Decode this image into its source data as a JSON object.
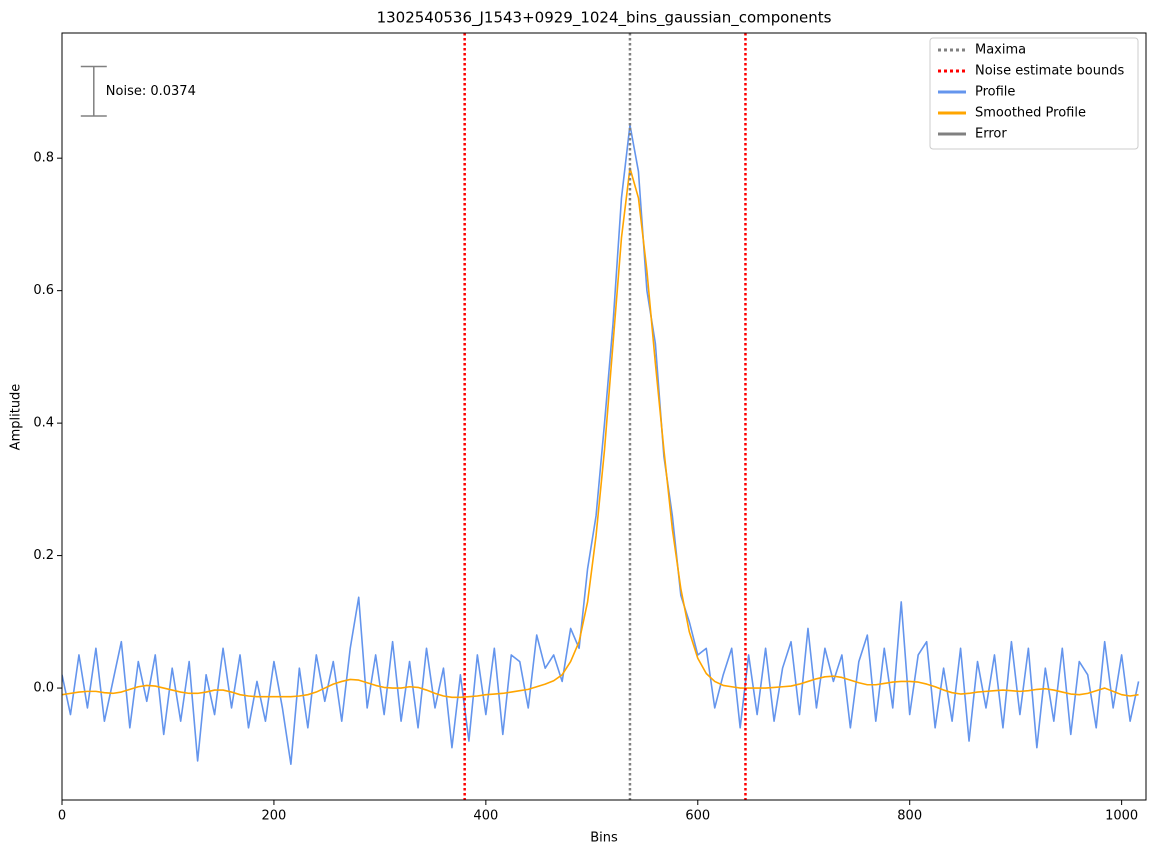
{
  "chart_data": {
    "type": "line",
    "title": "1302540536_J1543+0929_1024_bins_gaussian_components",
    "x_label": "Bins",
    "y_label": "Amplitude",
    "xlim": [
      0,
      1023
    ],
    "ylim": [
      -0.169,
      0.989
    ],
    "xticks": [
      0,
      200,
      400,
      600,
      800,
      1000
    ],
    "yticks": [
      {
        "value": 0,
        "label": "0.0"
      },
      0.2,
      0.4,
      0.6,
      0.8
    ],
    "legend": "upper right",
    "x": [
      0,
      8,
      16,
      24,
      32,
      40,
      48,
      56,
      64,
      72,
      80,
      88,
      96,
      104,
      112,
      120,
      128,
      136,
      144,
      152,
      160,
      168,
      176,
      184,
      192,
      200,
      208,
      216,
      224,
      232,
      240,
      248,
      256,
      264,
      272,
      280,
      288,
      296,
      304,
      312,
      320,
      328,
      336,
      344,
      352,
      360,
      368,
      376,
      384,
      392,
      400,
      408,
      416,
      424,
      432,
      440,
      448,
      456,
      464,
      472,
      480,
      488,
      496,
      504,
      512,
      520,
      528,
      536,
      544,
      552,
      560,
      568,
      576,
      584,
      592,
      600,
      608,
      616,
      624,
      632,
      640,
      648,
      656,
      664,
      672,
      680,
      688,
      696,
      704,
      712,
      720,
      728,
      736,
      744,
      752,
      760,
      768,
      776,
      784,
      792,
      800,
      808,
      816,
      824,
      832,
      840,
      848,
      856,
      864,
      872,
      880,
      888,
      896,
      904,
      912,
      920,
      928,
      936,
      944,
      952,
      960,
      968,
      976,
      984,
      992,
      1000,
      1008,
      1016
    ],
    "series": [
      {
        "name": "Profile",
        "color": "#6495ed",
        "width": 2,
        "values": [
          0.02,
          -0.04,
          0.05,
          -0.03,
          0.06,
          -0.05,
          0.01,
          0.07,
          -0.06,
          0.04,
          -0.02,
          0.05,
          -0.07,
          0.03,
          -0.05,
          0.04,
          -0.11,
          0.02,
          -0.04,
          0.06,
          -0.03,
          0.05,
          -0.06,
          0.01,
          -0.05,
          0.04,
          -0.03,
          -0.115,
          0.03,
          -0.06,
          0.05,
          -0.02,
          0.04,
          -0.05,
          0.06,
          0.137,
          -0.03,
          0.05,
          -0.04,
          0.07,
          -0.05,
          0.04,
          -0.06,
          0.06,
          -0.03,
          0.03,
          -0.09,
          0.02,
          -0.08,
          0.05,
          -0.04,
          0.06,
          -0.07,
          0.05,
          0.04,
          -0.03,
          0.08,
          0.03,
          0.05,
          0.01,
          0.09,
          0.06,
          0.18,
          0.26,
          0.4,
          0.55,
          0.74,
          0.85,
          0.78,
          0.6,
          0.52,
          0.35,
          0.26,
          0.14,
          0.1,
          0.05,
          0.06,
          -0.03,
          0.02,
          0.06,
          -0.06,
          0.05,
          -0.04,
          0.06,
          -0.05,
          0.03,
          0.07,
          -0.04,
          0.09,
          -0.03,
          0.06,
          0.01,
          0.05,
          -0.06,
          0.04,
          0.08,
          -0.05,
          0.06,
          -0.03,
          0.13,
          -0.04,
          0.05,
          0.07,
          -0.06,
          0.03,
          -0.05,
          0.06,
          -0.08,
          0.04,
          -0.03,
          0.05,
          -0.06,
          0.07,
          -0.04,
          0.06,
          -0.09,
          0.03,
          -0.05,
          0.06,
          -0.07,
          0.04,
          0.02,
          -0.06,
          0.07,
          -0.03,
          0.05,
          -0.05,
          0.01
        ]
      },
      {
        "name": "Smoothed Profile",
        "color": "#ffa500",
        "width": 2,
        "values": [
          -0.01,
          -0.008,
          -0.006,
          -0.005,
          -0.005,
          -0.007,
          -0.008,
          -0.006,
          -0.002,
          0.002,
          0.004,
          0.003,
          0.0,
          -0.003,
          -0.006,
          -0.008,
          -0.008,
          -0.006,
          -0.003,
          -0.003,
          -0.006,
          -0.01,
          -0.012,
          -0.013,
          -0.013,
          -0.013,
          -0.013,
          -0.013,
          -0.012,
          -0.01,
          -0.006,
          0.0,
          0.006,
          0.01,
          0.013,
          0.012,
          0.008,
          0.004,
          0.001,
          0.0,
          0.0,
          0.002,
          0.001,
          -0.003,
          -0.008,
          -0.012,
          -0.014,
          -0.014,
          -0.013,
          -0.012,
          -0.01,
          -0.009,
          -0.008,
          -0.006,
          -0.004,
          -0.002,
          0.002,
          0.006,
          0.011,
          0.02,
          0.04,
          0.07,
          0.13,
          0.23,
          0.36,
          0.52,
          0.68,
          0.785,
          0.74,
          0.63,
          0.49,
          0.36,
          0.24,
          0.15,
          0.085,
          0.045,
          0.022,
          0.01,
          0.004,
          0.002,
          0.0,
          0.0,
          0.0,
          0.0,
          0.001,
          0.002,
          0.003,
          0.006,
          0.01,
          0.014,
          0.017,
          0.018,
          0.016,
          0.012,
          0.008,
          0.005,
          0.005,
          0.007,
          0.009,
          0.01,
          0.01,
          0.009,
          0.006,
          0.002,
          -0.003,
          -0.007,
          -0.009,
          -0.008,
          -0.006,
          -0.005,
          -0.004,
          -0.003,
          -0.004,
          -0.005,
          -0.004,
          -0.002,
          -0.001,
          -0.003,
          -0.006,
          -0.009,
          -0.01,
          -0.008,
          -0.004,
          0.0,
          -0.005,
          -0.01,
          -0.012,
          -0.01
        ]
      }
    ],
    "maxima": {
      "name": "Maxima",
      "color": "#808080",
      "x": [
        536
      ]
    },
    "noise_bounds": {
      "name": "Noise estimate bounds",
      "color": "#ff0000",
      "x": [
        380,
        645
      ]
    },
    "error_bar": {
      "name": "Error",
      "color": "#808080",
      "x": 30,
      "y": 0.901,
      "error": 0.0374,
      "label": "Noise: 0.0374"
    }
  }
}
